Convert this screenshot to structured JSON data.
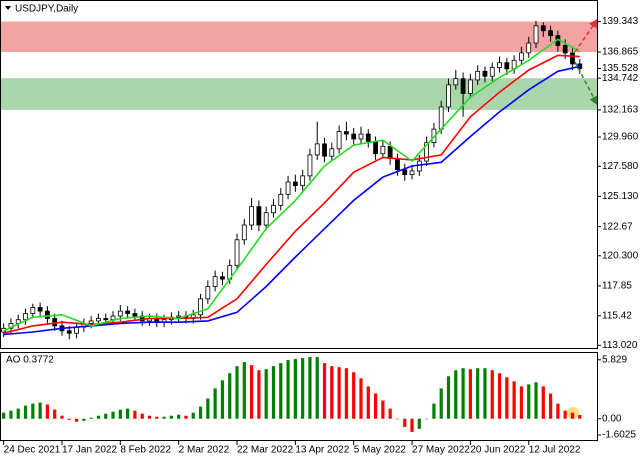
{
  "chart_data": [
    {
      "type": "candlestick",
      "title": "USDJPY,Daily",
      "open": [
        114.1,
        114.4,
        114.8,
        115.1,
        115.6,
        116.1,
        115.8,
        115.2,
        114.6,
        114.2,
        114.0,
        114.5,
        114.8,
        115.0,
        115.2,
        115.1,
        115.4,
        115.8,
        115.6,
        115.4,
        115.0,
        115.2,
        114.9,
        115.1,
        115.3,
        115.4,
        115.2,
        115.5,
        116.8,
        117.8,
        118.6,
        118.4,
        119.5,
        121.6,
        122.8,
        124.3,
        122.8,
        123.8,
        124.4,
        125.3,
        126.3,
        126.0,
        126.8,
        128.5,
        129.4,
        128.4,
        129.0,
        130.4,
        130.2,
        129.8,
        130.2,
        129.6,
        128.6,
        129.2,
        128.2,
        127.3,
        126.9,
        127.2,
        128.0,
        129.5,
        130.6,
        132.4,
        134.2,
        134.7,
        133.5,
        134.6,
        135.3,
        134.9,
        135.6,
        136.0,
        135.5,
        136.2,
        136.8,
        137.6,
        139.0,
        138.6,
        138.2,
        137.4,
        136.8,
        135.9
      ],
      "high": [
        114.8,
        115.2,
        115.5,
        116.0,
        116.4,
        116.5,
        116.2,
        115.6,
        115.0,
        114.6,
        114.9,
        115.2,
        115.4,
        115.6,
        115.6,
        115.8,
        116.3,
        116.2,
        116.0,
        115.8,
        115.6,
        115.6,
        115.5,
        115.7,
        115.8,
        115.8,
        115.9,
        117.2,
        118.3,
        119.1,
        119.0,
        120.0,
        122.1,
        123.3,
        125.0,
        124.8,
        124.3,
        124.9,
        125.8,
        126.8,
        126.9,
        127.3,
        129.0,
        131.2,
        129.9,
        129.5,
        130.9,
        131.2,
        130.7,
        130.8,
        130.6,
        130.0,
        129.7,
        129.6,
        128.6,
        127.8,
        127.7,
        128.5,
        130.0,
        131.1,
        132.9,
        134.7,
        135.4,
        135.2,
        135.1,
        135.8,
        135.7,
        136.0,
        136.5,
        136.4,
        136.6,
        137.3,
        138.1,
        139.4,
        139.3,
        139.0,
        138.6,
        137.9,
        137.2,
        136.3
      ],
      "low": [
        113.7,
        114.0,
        114.4,
        114.7,
        115.2,
        115.4,
        114.8,
        114.2,
        113.8,
        113.5,
        113.6,
        114.1,
        114.4,
        114.6,
        114.7,
        114.7,
        115.0,
        115.2,
        115.0,
        114.6,
        114.6,
        114.5,
        114.5,
        114.7,
        114.9,
        114.8,
        114.8,
        115.1,
        116.4,
        117.4,
        117.9,
        118.0,
        119.1,
        121.2,
        122.4,
        122.3,
        122.4,
        123.4,
        124.0,
        124.9,
        125.5,
        125.6,
        126.4,
        128.1,
        127.9,
        128.0,
        128.6,
        129.7,
        129.3,
        129.4,
        129.1,
        128.1,
        128.2,
        127.7,
        126.8,
        126.4,
        126.5,
        126.8,
        127.6,
        129.1,
        130.2,
        132.0,
        133.8,
        131.6,
        133.1,
        134.2,
        134.4,
        134.5,
        135.2,
        135.0,
        135.1,
        135.8,
        136.4,
        137.2,
        138.1,
        137.7,
        136.9,
        136.3,
        135.4,
        135.1
      ],
      "close": [
        114.4,
        114.8,
        115.1,
        115.6,
        116.1,
        115.8,
        115.2,
        114.6,
        114.2,
        114.0,
        114.5,
        114.8,
        115.0,
        115.2,
        115.1,
        115.4,
        115.8,
        115.6,
        115.4,
        115.0,
        115.2,
        114.9,
        115.1,
        115.3,
        115.4,
        115.2,
        115.5,
        116.8,
        117.8,
        118.6,
        118.4,
        119.5,
        121.6,
        122.8,
        124.3,
        122.8,
        123.8,
        124.4,
        125.3,
        126.3,
        126.0,
        126.8,
        128.5,
        129.4,
        128.4,
        129.0,
        130.4,
        130.2,
        129.8,
        130.2,
        129.6,
        128.6,
        129.2,
        128.2,
        127.3,
        126.9,
        127.2,
        128.0,
        129.5,
        130.6,
        132.4,
        134.2,
        134.7,
        133.5,
        134.6,
        135.3,
        134.9,
        135.6,
        136.0,
        135.5,
        136.2,
        136.8,
        137.6,
        139.0,
        138.6,
        138.2,
        137.4,
        136.8,
        135.9,
        135.53
      ],
      "up_color": "#ffffff",
      "down_color": "#000000",
      "series": [
        {
          "color": "#0000ff",
          "x": [
            0,
            4,
            8,
            12,
            16,
            20,
            24,
            28,
            32,
            36,
            40,
            44,
            48,
            52,
            56,
            60,
            64,
            68,
            72,
            76,
            79
          ],
          "values": [
            113.9,
            114.1,
            114.4,
            114.6,
            114.8,
            114.9,
            114.9,
            115.0,
            115.7,
            117.8,
            120.2,
            122.5,
            124.8,
            126.7,
            127.6,
            127.9,
            130.0,
            132.0,
            133.8,
            135.3,
            135.7
          ]
        },
        {
          "color": "#ff0000",
          "x": [
            0,
            4,
            8,
            12,
            16,
            20,
            24,
            28,
            32,
            36,
            40,
            44,
            48,
            52,
            56,
            60,
            64,
            68,
            72,
            76,
            79
          ],
          "values": [
            114.0,
            114.6,
            114.9,
            114.7,
            114.9,
            115.2,
            115.2,
            115.3,
            116.8,
            119.6,
            122.3,
            124.6,
            127.1,
            128.3,
            128.1,
            128.5,
            131.6,
            133.6,
            135.4,
            136.6,
            136.5
          ]
        },
        {
          "color": "#22dd22",
          "x": [
            0,
            4,
            8,
            12,
            16,
            20,
            24,
            28,
            32,
            36,
            40,
            44,
            48,
            52,
            56,
            60,
            64,
            68,
            72,
            76,
            79
          ],
          "values": [
            114.2,
            115.3,
            115.5,
            114.6,
            115.2,
            115.4,
            115.2,
            116.0,
            119.2,
            122.5,
            124.8,
            127.6,
            129.3,
            129.7,
            128.0,
            130.6,
            133.2,
            134.8,
            136.2,
            137.9,
            136.9
          ]
        }
      ],
      "zones": [
        {
          "from": 136.865,
          "to": 139.343,
          "color": "#f4a3a3"
        },
        {
          "from": 132.163,
          "to": 134.742,
          "color": "#a9d6ab"
        }
      ],
      "ylim": [
        112.8,
        141.1
      ],
      "yticks": [
        139.343,
        136.865,
        135.528,
        134.742,
        132.163,
        {
          "value": 129.96,
          "label": "129.960"
        },
        {
          "value": 127.58,
          "label": "127.580"
        },
        {
          "value": 125.13,
          "label": "125.130"
        },
        122.67,
        {
          "value": 120.3,
          "label": "120.300"
        },
        117.85,
        115.42,
        {
          "value": 113.02,
          "label": "113.020"
        }
      ],
      "xlim": [
        -0.5,
        81.5
      ],
      "xticks": [
        {
          "value": 0,
          "label": "24 Dec 2021"
        },
        {
          "value": 8,
          "label": "17 Jan 2022"
        },
        {
          "value": 16,
          "label": "8 Feb 2022"
        },
        {
          "value": 24,
          "label": "2 Mar 2022"
        },
        {
          "value": 32,
          "label": "22 Mar 2022"
        },
        {
          "value": 40,
          "label": "13 Apr 2022"
        },
        {
          "value": 48,
          "label": "5 May 2022"
        },
        {
          "value": 56,
          "label": "27 May 2022"
        },
        {
          "value": 64,
          "label": "20 Jun 2022"
        },
        {
          "value": 72,
          "label": "12 Jul 2022"
        }
      ]
    },
    {
      "type": "bar",
      "title": "AO 0.3772",
      "values": [
        0.6,
        0.8,
        1.0,
        1.3,
        1.5,
        1.6,
        1.4,
        0.9,
        0.3,
        -0.1,
        -0.3,
        -0.2,
        0.1,
        0.3,
        0.5,
        0.7,
        0.9,
        1.0,
        0.8,
        0.5,
        0.3,
        0.2,
        0.2,
        0.3,
        0.4,
        0.3,
        0.6,
        1.2,
        2.0,
        3.0,
        3.8,
        4.5,
        5.2,
        5.6,
        5.3,
        4.8,
        4.9,
        5.2,
        5.5,
        5.8,
        5.9,
        6.0,
        6.1,
        6.1,
        5.5,
        5.2,
        5.1,
        5.0,
        4.6,
        4.0,
        3.2,
        2.5,
        1.8,
        1.0,
        0.0,
        -0.8,
        -1.3,
        -1.0,
        0.0,
        1.5,
        3.0,
        4.2,
        4.8,
        5.0,
        4.9,
        5.0,
        5.0,
        4.8,
        4.5,
        4.1,
        3.7,
        3.2,
        3.4,
        3.6,
        3.2,
        2.5,
        1.5,
        0.8,
        0.6,
        0.3772
      ],
      "up_color": "#008000",
      "down_color": "#ff0000",
      "ylim": [
        -2.2,
        6.6
      ],
      "yticks": [
        5.829,
        {
          "value": 0,
          "label": "0.00"
        },
        -1.6025
      ],
      "xlim": [
        -0.5,
        81.5
      ]
    }
  ]
}
